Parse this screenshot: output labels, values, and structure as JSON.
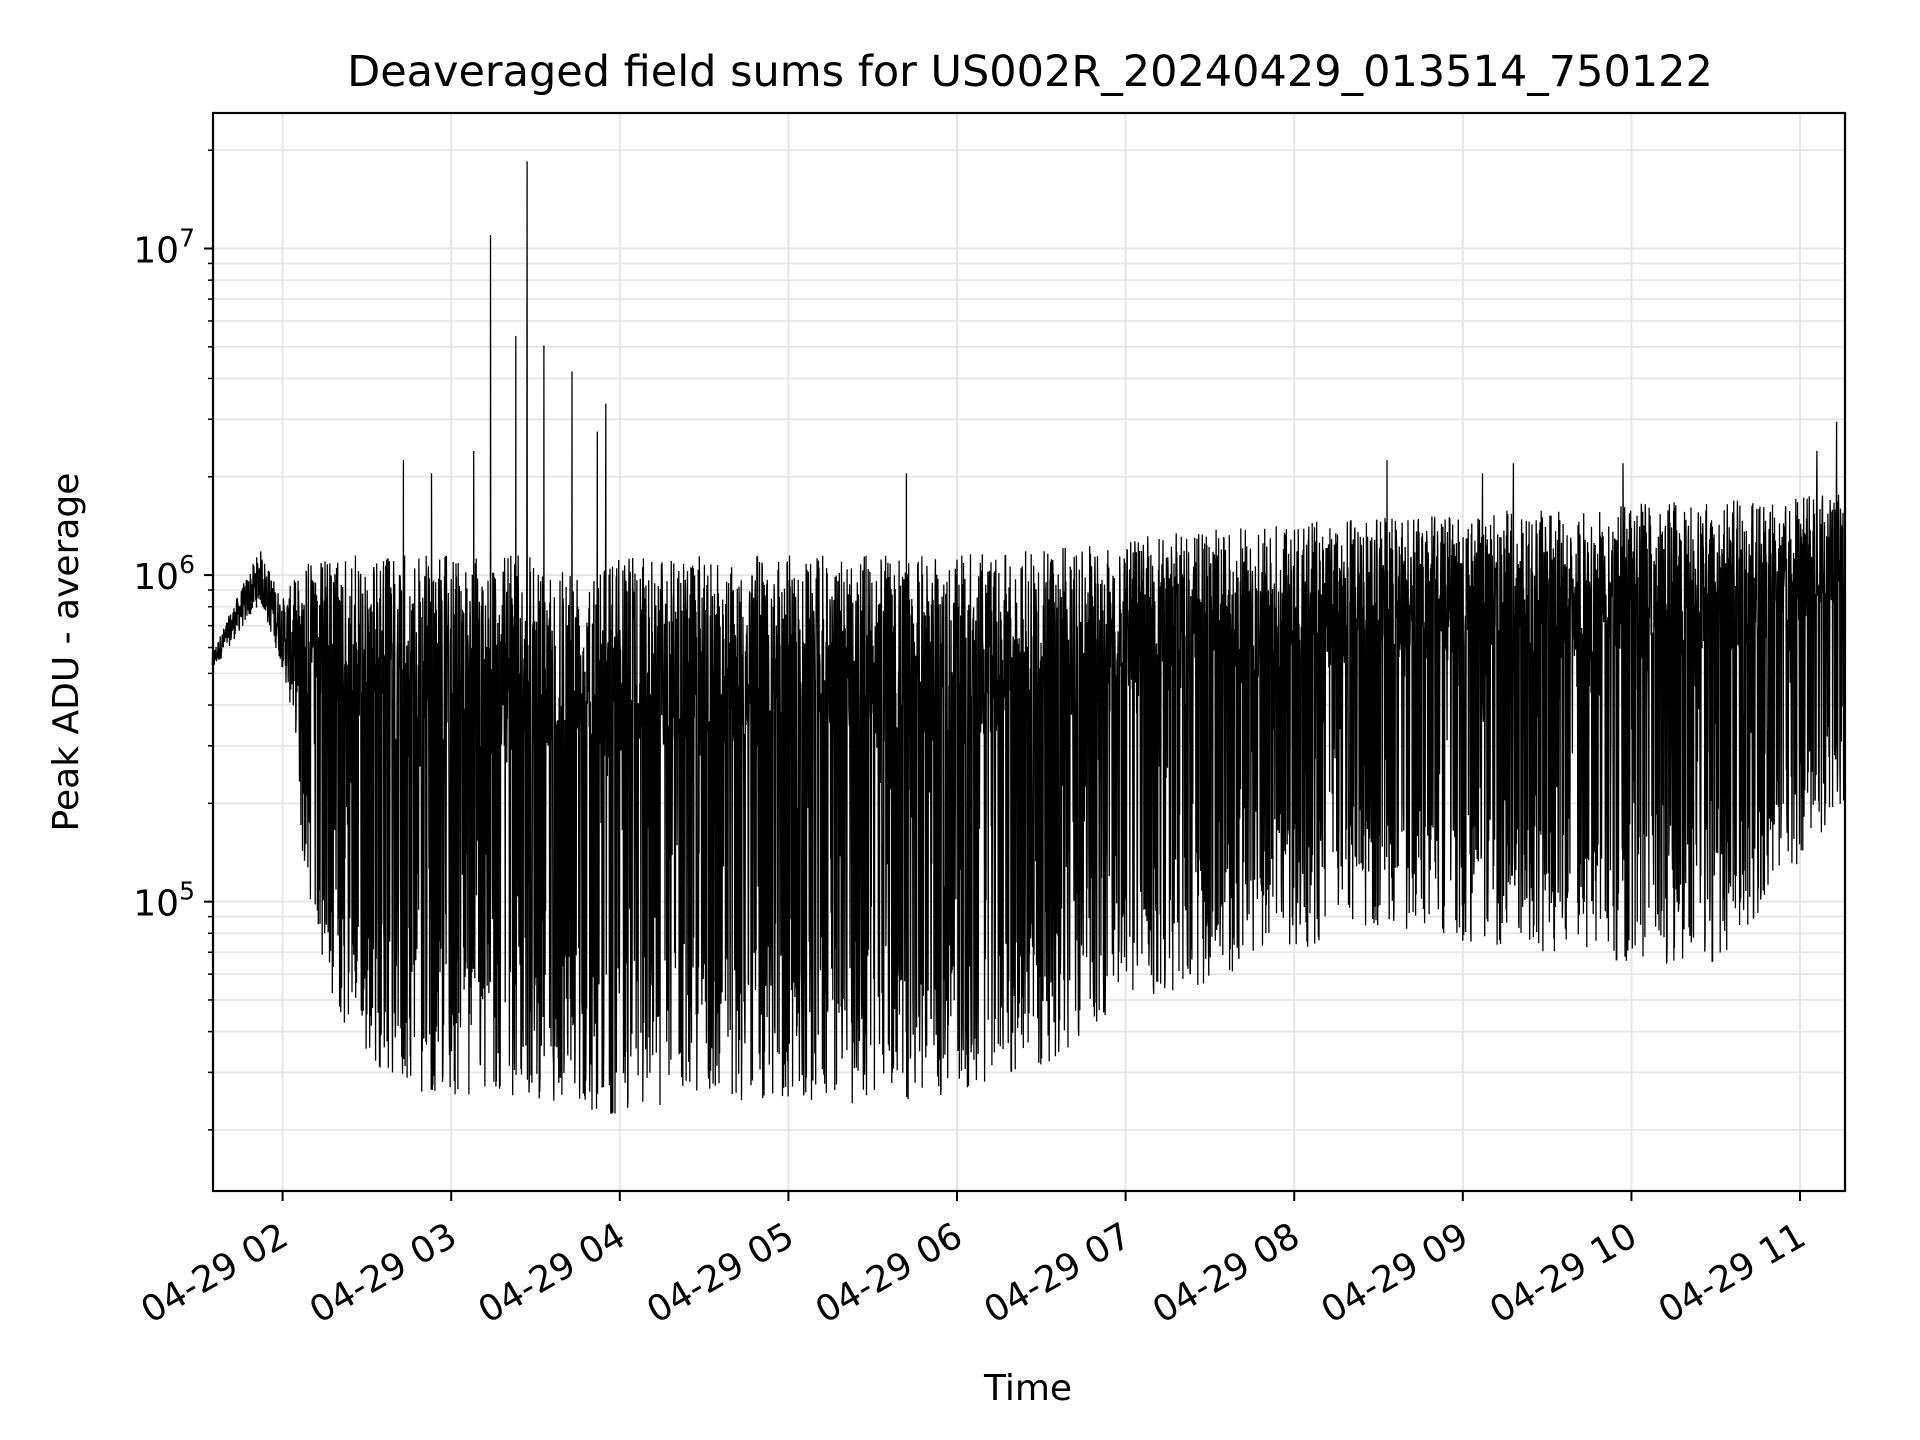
{
  "chart_data": {
    "type": "line",
    "title": "Deaveraged field sums for US002R_20240429_013514_750122",
    "xlabel": "Time",
    "ylabel": "Peak ADU - average",
    "y_scale": "log",
    "ylim": [
      13000,
      26000000
    ],
    "xlim": [
      "2024-04-29T01:35:14",
      "2024-04-29T11:16:00"
    ],
    "grid": true,
    "grid_color": "#e6e6e6",
    "line_color": "#000000",
    "x_ticks": [
      {
        "t": "2024-04-29T02:00",
        "label": "04-29 02"
      },
      {
        "t": "2024-04-29T03:00",
        "label": "04-29 03"
      },
      {
        "t": "2024-04-29T04:00",
        "label": "04-29 04"
      },
      {
        "t": "2024-04-29T05:00",
        "label": "04-29 05"
      },
      {
        "t": "2024-04-29T06:00",
        "label": "04-29 06"
      },
      {
        "t": "2024-04-29T07:00",
        "label": "04-29 07"
      },
      {
        "t": "2024-04-29T08:00",
        "label": "04-29 08"
      },
      {
        "t": "2024-04-29T09:00",
        "label": "04-29 09"
      },
      {
        "t": "2024-04-29T10:00",
        "label": "04-29 10"
      },
      {
        "t": "2024-04-29T11:00",
        "label": "04-29 11"
      }
    ],
    "y_ticks": [
      {
        "value": 100000,
        "base": "10",
        "exp": "5"
      },
      {
        "value": 1000000,
        "base": "10",
        "exp": "6"
      },
      {
        "value": 10000000,
        "base": "10",
        "exp": "7"
      }
    ],
    "series": [
      {
        "envelope": [
          {
            "t": "2024-04-29T01:35",
            "low": 480000,
            "high": 580000
          },
          {
            "t": "2024-04-29T01:45",
            "low": 600000,
            "high": 900000
          },
          {
            "t": "2024-04-29T01:52",
            "low": 700000,
            "high": 1200000
          },
          {
            "t": "2024-04-29T02:00",
            "low": 420000,
            "high": 850000
          },
          {
            "t": "2024-04-29T02:08",
            "low": 120000,
            "high": 1100000
          },
          {
            "t": "2024-04-29T02:20",
            "low": 40000,
            "high": 1150000
          },
          {
            "t": "2024-04-29T02:40",
            "low": 28000,
            "high": 1150000
          },
          {
            "t": "2024-04-29T03:00",
            "low": 24000,
            "high": 1150000
          },
          {
            "t": "2024-04-29T03:30",
            "low": 25000,
            "high": 1150000
          },
          {
            "t": "2024-04-29T04:00",
            "low": 22000,
            "high": 1150000
          },
          {
            "t": "2024-04-29T04:30",
            "low": 25000,
            "high": 1150000
          },
          {
            "t": "2024-04-29T05:00",
            "low": 24000,
            "high": 1150000
          },
          {
            "t": "2024-04-29T05:30",
            "low": 24000,
            "high": 1150000
          },
          {
            "t": "2024-04-29T06:00",
            "low": 25000,
            "high": 1150000
          },
          {
            "t": "2024-04-29T06:30",
            "low": 30000,
            "high": 1200000
          },
          {
            "t": "2024-04-29T07:00",
            "low": 50000,
            "high": 1300000
          },
          {
            "t": "2024-04-29T07:30",
            "low": 55000,
            "high": 1400000
          },
          {
            "t": "2024-04-29T08:00",
            "low": 70000,
            "high": 1450000
          },
          {
            "t": "2024-04-29T08:30",
            "low": 85000,
            "high": 1500000
          },
          {
            "t": "2024-04-29T09:00",
            "low": 75000,
            "high": 1550000
          },
          {
            "t": "2024-04-29T09:30",
            "low": 70000,
            "high": 1600000
          },
          {
            "t": "2024-04-29T10:00",
            "low": 65000,
            "high": 1650000
          },
          {
            "t": "2024-04-29T10:30",
            "low": 65000,
            "high": 1700000
          },
          {
            "t": "2024-04-29T11:00",
            "low": 130000,
            "high": 1750000
          },
          {
            "t": "2024-04-29T11:16",
            "low": 200000,
            "high": 1800000
          }
        ],
        "spikes": [
          {
            "t": "2024-04-29T02:43",
            "value": 2250000
          },
          {
            "t": "2024-04-29T02:53",
            "value": 2050000
          },
          {
            "t": "2024-04-29T03:08",
            "value": 2400000
          },
          {
            "t": "2024-04-29T03:14",
            "value": 11000000
          },
          {
            "t": "2024-04-29T03:23",
            "value": 5400000
          },
          {
            "t": "2024-04-29T03:27",
            "value": 18500000
          },
          {
            "t": "2024-04-29T03:33",
            "value": 5050000
          },
          {
            "t": "2024-04-29T03:43",
            "value": 4200000
          },
          {
            "t": "2024-04-29T03:52",
            "value": 2750000
          },
          {
            "t": "2024-04-29T03:55",
            "value": 3350000
          },
          {
            "t": "2024-04-29T05:42",
            "value": 2050000
          },
          {
            "t": "2024-04-29T08:33",
            "value": 2250000
          },
          {
            "t": "2024-04-29T09:07",
            "value": 2050000
          },
          {
            "t": "2024-04-29T09:18",
            "value": 2200000
          },
          {
            "t": "2024-04-29T09:57",
            "value": 2200000
          },
          {
            "t": "2024-04-29T11:06",
            "value": 2400000
          },
          {
            "t": "2024-04-29T11:13",
            "value": 2950000
          }
        ]
      }
    ]
  }
}
